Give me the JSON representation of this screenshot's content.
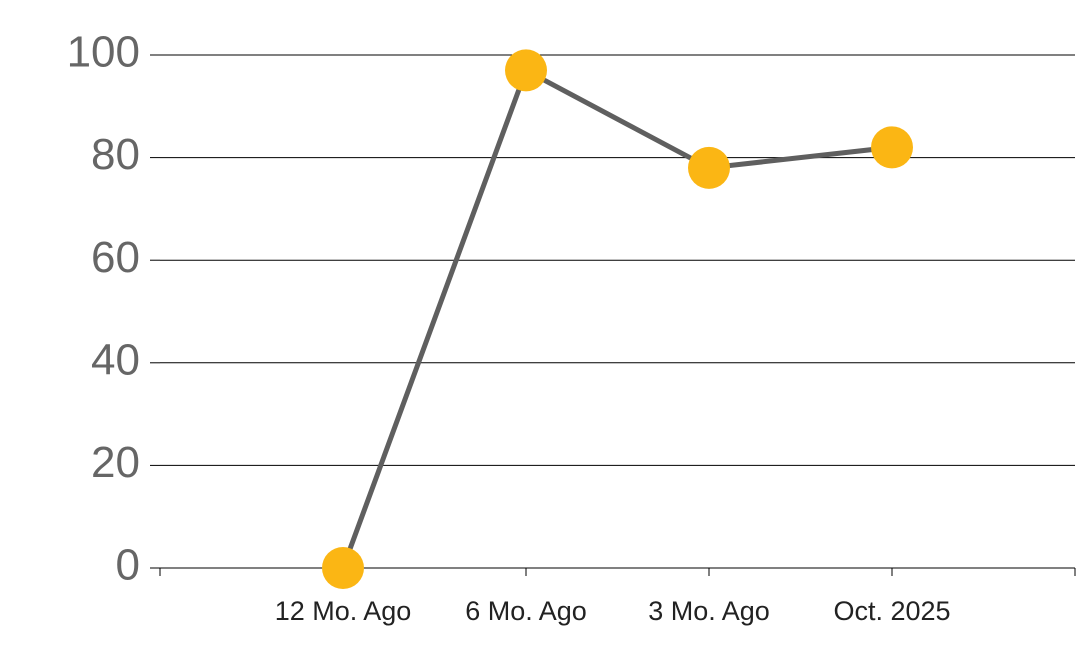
{
  "chart_data": {
    "type": "line",
    "categories": [
      "12 Mo. Ago",
      "6 Mo. Ago",
      "3 Mo. Ago",
      "Oct. 2025"
    ],
    "series": [
      {
        "color": "#5f5f5f",
        "marker_color": "#fbb614",
        "values": [
          0,
          97,
          78,
          82
        ]
      }
    ],
    "ylim": [
      0,
      100
    ],
    "yticks": [
      0,
      20,
      40,
      60,
      80,
      100
    ],
    "grid": true
  }
}
